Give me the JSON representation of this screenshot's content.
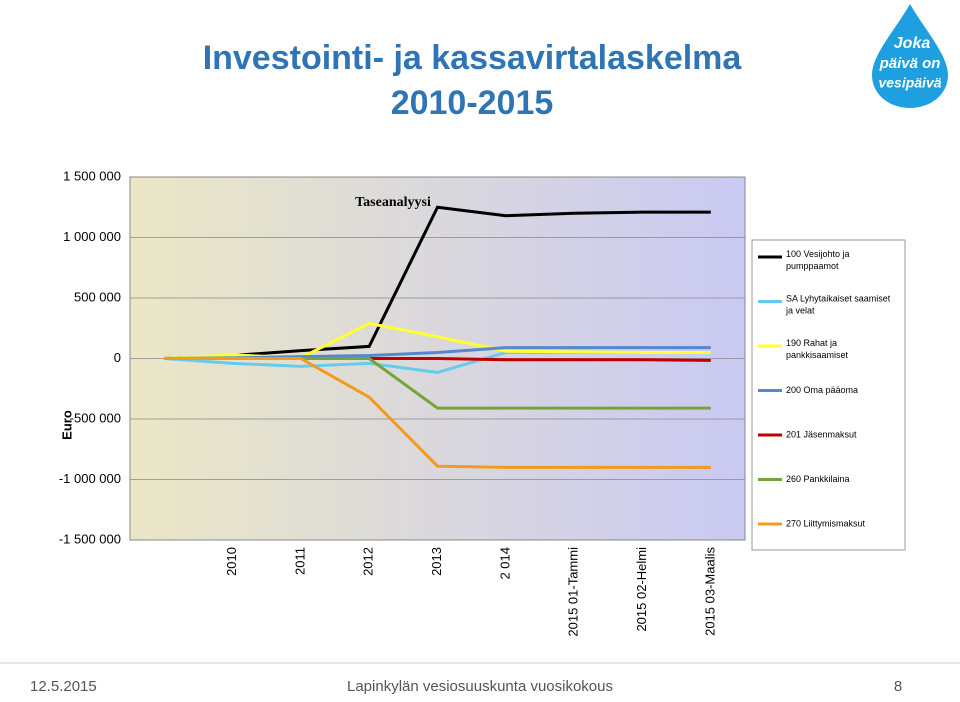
{
  "header": {
    "title_line1": "Investointi- ja kassavirtalaskelma",
    "title_line2": "2010-2015",
    "logo_text": [
      "Joka",
      "päivä on",
      "vesipäivä"
    ]
  },
  "chart_data": {
    "type": "line",
    "title": "Taseanalyysi",
    "y_label": "Euro",
    "categories": [
      null,
      "2010",
      "2011",
      "2012",
      "2013",
      "2 014",
      "2015 01-Tammi",
      "2015 02-Helmi",
      "2015 03-Maalis"
    ],
    "series": [
      {
        "name": "100 Vesijohto ja pumppaamot",
        "color": "#000000",
        "values": [
          0,
          25000,
          65000,
          100000,
          1250000,
          1180000,
          1200000,
          1210000,
          1210000
        ]
      },
      {
        "name": "SA Lyhytaikaiset saamiset ja velat",
        "color": "#66ccee",
        "values": [
          0,
          -40000,
          -65000,
          -40000,
          -115000,
          50000,
          50000,
          50000,
          50000
        ]
      },
      {
        "name": "190 Rahat ja pankkisaamiset",
        "color": "#ffff33",
        "values": [
          0,
          30000,
          5000,
          290000,
          180000,
          60000,
          55000,
          50000,
          50000
        ]
      },
      {
        "name": "200 Oma pääoma",
        "color": "#5588cc",
        "values": [
          0,
          5000,
          15000,
          25000,
          50000,
          90000,
          90000,
          90000,
          90000
        ]
      },
      {
        "name": "201 Jäsenmaksut",
        "color": "#c00000",
        "values": [
          0,
          0,
          0,
          0,
          0,
          -10000,
          -10000,
          -10000,
          -15000
        ]
      },
      {
        "name": "260 Pankkilaina",
        "color": "#77a33a",
        "values": [
          0,
          0,
          0,
          0,
          -410000,
          -410000,
          -410000,
          -410000,
          -410000
        ]
      },
      {
        "name": "270 Liittymismaksut",
        "color": "#f39a1e",
        "values": [
          0,
          0,
          0,
          -320000,
          -890000,
          -900000,
          -900000,
          -900000,
          -900000
        ]
      }
    ],
    "ylim": [
      -1500000,
      1500000
    ],
    "yticks": [
      {
        "value": -1500000,
        "label": "-1 500 000"
      },
      {
        "value": -1000000,
        "label": "-1 000 000"
      },
      {
        "value": -500000,
        "label": "-500 000"
      },
      0,
      {
        "value": 500000,
        "label": "500 000"
      },
      {
        "value": 1000000,
        "label": "1 000 000"
      },
      {
        "value": 1500000,
        "label": "1 500 000"
      }
    ],
    "grid": true
  },
  "footer": {
    "date": "12.5.2015",
    "text": "Lapinkylän vesiosuuskunta vuosikokous",
    "page": "8"
  }
}
